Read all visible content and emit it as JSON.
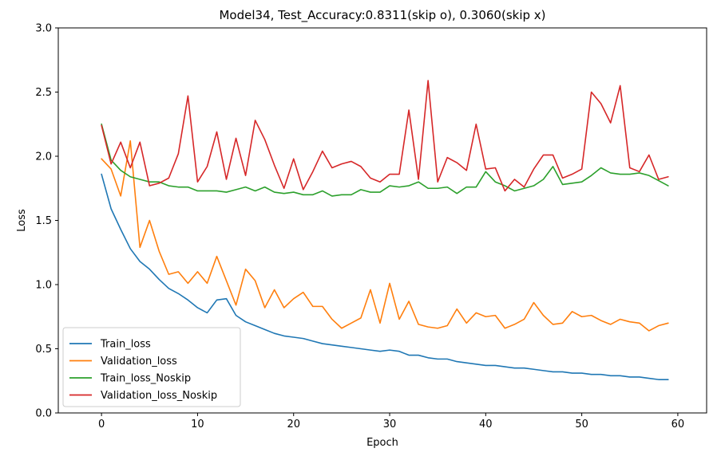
{
  "chart_data": {
    "type": "line",
    "title": "Model34, Test_Accuracy:0.8311(skip o), 0.3060(skip x)",
    "xlabel": "Epoch",
    "ylabel": "Loss",
    "xlim": [
      -4.5,
      63
    ],
    "ylim": [
      0.0,
      3.0
    ],
    "xticks": [
      0,
      10,
      20,
      30,
      40,
      50,
      60
    ],
    "yticks": [
      0.0,
      0.5,
      1.0,
      1.5,
      2.0,
      2.5,
      3.0
    ],
    "grid": false,
    "legend_position": "lower-left",
    "x": [
      0,
      1,
      2,
      3,
      4,
      5,
      6,
      7,
      8,
      9,
      10,
      11,
      12,
      13,
      14,
      15,
      16,
      17,
      18,
      19,
      20,
      21,
      22,
      23,
      24,
      25,
      26,
      27,
      28,
      29,
      30,
      31,
      32,
      33,
      34,
      35,
      36,
      37,
      38,
      39,
      40,
      41,
      42,
      43,
      44,
      45,
      46,
      47,
      48,
      49,
      50,
      51,
      52,
      53,
      54,
      55,
      56,
      57,
      58,
      59
    ],
    "series": [
      {
        "name": "Train_loss",
        "color": "#1f77b4",
        "values": [
          1.86,
          1.59,
          1.43,
          1.28,
          1.18,
          1.12,
          1.04,
          0.97,
          0.93,
          0.88,
          0.82,
          0.78,
          0.88,
          0.89,
          0.76,
          0.71,
          0.68,
          0.65,
          0.62,
          0.6,
          0.59,
          0.58,
          0.56,
          0.54,
          0.53,
          0.52,
          0.51,
          0.5,
          0.49,
          0.48,
          0.49,
          0.48,
          0.45,
          0.45,
          0.43,
          0.42,
          0.42,
          0.4,
          0.39,
          0.38,
          0.37,
          0.37,
          0.36,
          0.35,
          0.35,
          0.34,
          0.33,
          0.32,
          0.32,
          0.31,
          0.31,
          0.3,
          0.3,
          0.29,
          0.29,
          0.28,
          0.28,
          0.27,
          0.26,
          0.26
        ]
      },
      {
        "name": "Validation_loss",
        "color": "#ff7f0e",
        "values": [
          1.98,
          1.9,
          1.69,
          2.12,
          1.29,
          1.5,
          1.26,
          1.08,
          1.1,
          1.01,
          1.1,
          1.01,
          1.22,
          1.03,
          0.84,
          1.12,
          1.03,
          0.82,
          0.96,
          0.82,
          0.89,
          0.94,
          0.83,
          0.83,
          0.73,
          0.66,
          0.7,
          0.74,
          0.96,
          0.7,
          1.01,
          0.73,
          0.87,
          0.69,
          0.67,
          0.66,
          0.68,
          0.81,
          0.7,
          0.78,
          0.75,
          0.76,
          0.66,
          0.69,
          0.73,
          0.86,
          0.76,
          0.69,
          0.7,
          0.79,
          0.75,
          0.76,
          0.72,
          0.69,
          0.73,
          0.71,
          0.7,
          0.64,
          0.68,
          0.7
        ]
      },
      {
        "name": "Train_loss_Noskip",
        "color": "#2ca02c",
        "values": [
          2.25,
          1.97,
          1.89,
          1.84,
          1.82,
          1.8,
          1.8,
          1.77,
          1.76,
          1.76,
          1.73,
          1.73,
          1.73,
          1.72,
          1.74,
          1.76,
          1.73,
          1.76,
          1.72,
          1.71,
          1.72,
          1.7,
          1.7,
          1.73,
          1.69,
          1.7,
          1.7,
          1.74,
          1.72,
          1.72,
          1.77,
          1.76,
          1.77,
          1.8,
          1.75,
          1.75,
          1.76,
          1.71,
          1.76,
          1.76,
          1.88,
          1.8,
          1.77,
          1.73,
          1.75,
          1.77,
          1.82,
          1.92,
          1.78,
          1.79,
          1.8,
          1.85,
          1.91,
          1.87,
          1.86,
          1.86,
          1.87,
          1.85,
          1.81,
          1.77
        ]
      },
      {
        "name": "Validation_loss_Noskip",
        "color": "#d62728",
        "values": [
          2.24,
          1.94,
          2.11,
          1.91,
          2.11,
          1.77,
          1.79,
          1.83,
          2.02,
          2.47,
          1.8,
          1.92,
          2.19,
          1.82,
          2.14,
          1.85,
          2.28,
          2.13,
          1.93,
          1.75,
          1.98,
          1.74,
          1.88,
          2.04,
          1.91,
          1.94,
          1.96,
          1.92,
          1.83,
          1.8,
          1.86,
          1.86,
          2.36,
          1.82,
          2.59,
          1.8,
          1.99,
          1.95,
          1.89,
          2.25,
          1.9,
          1.91,
          1.73,
          1.82,
          1.76,
          1.9,
          2.01,
          2.01,
          1.83,
          1.86,
          1.9,
          2.5,
          2.41,
          2.26,
          2.55,
          1.91,
          1.88,
          2.01,
          1.82,
          1.84
        ]
      }
    ]
  }
}
